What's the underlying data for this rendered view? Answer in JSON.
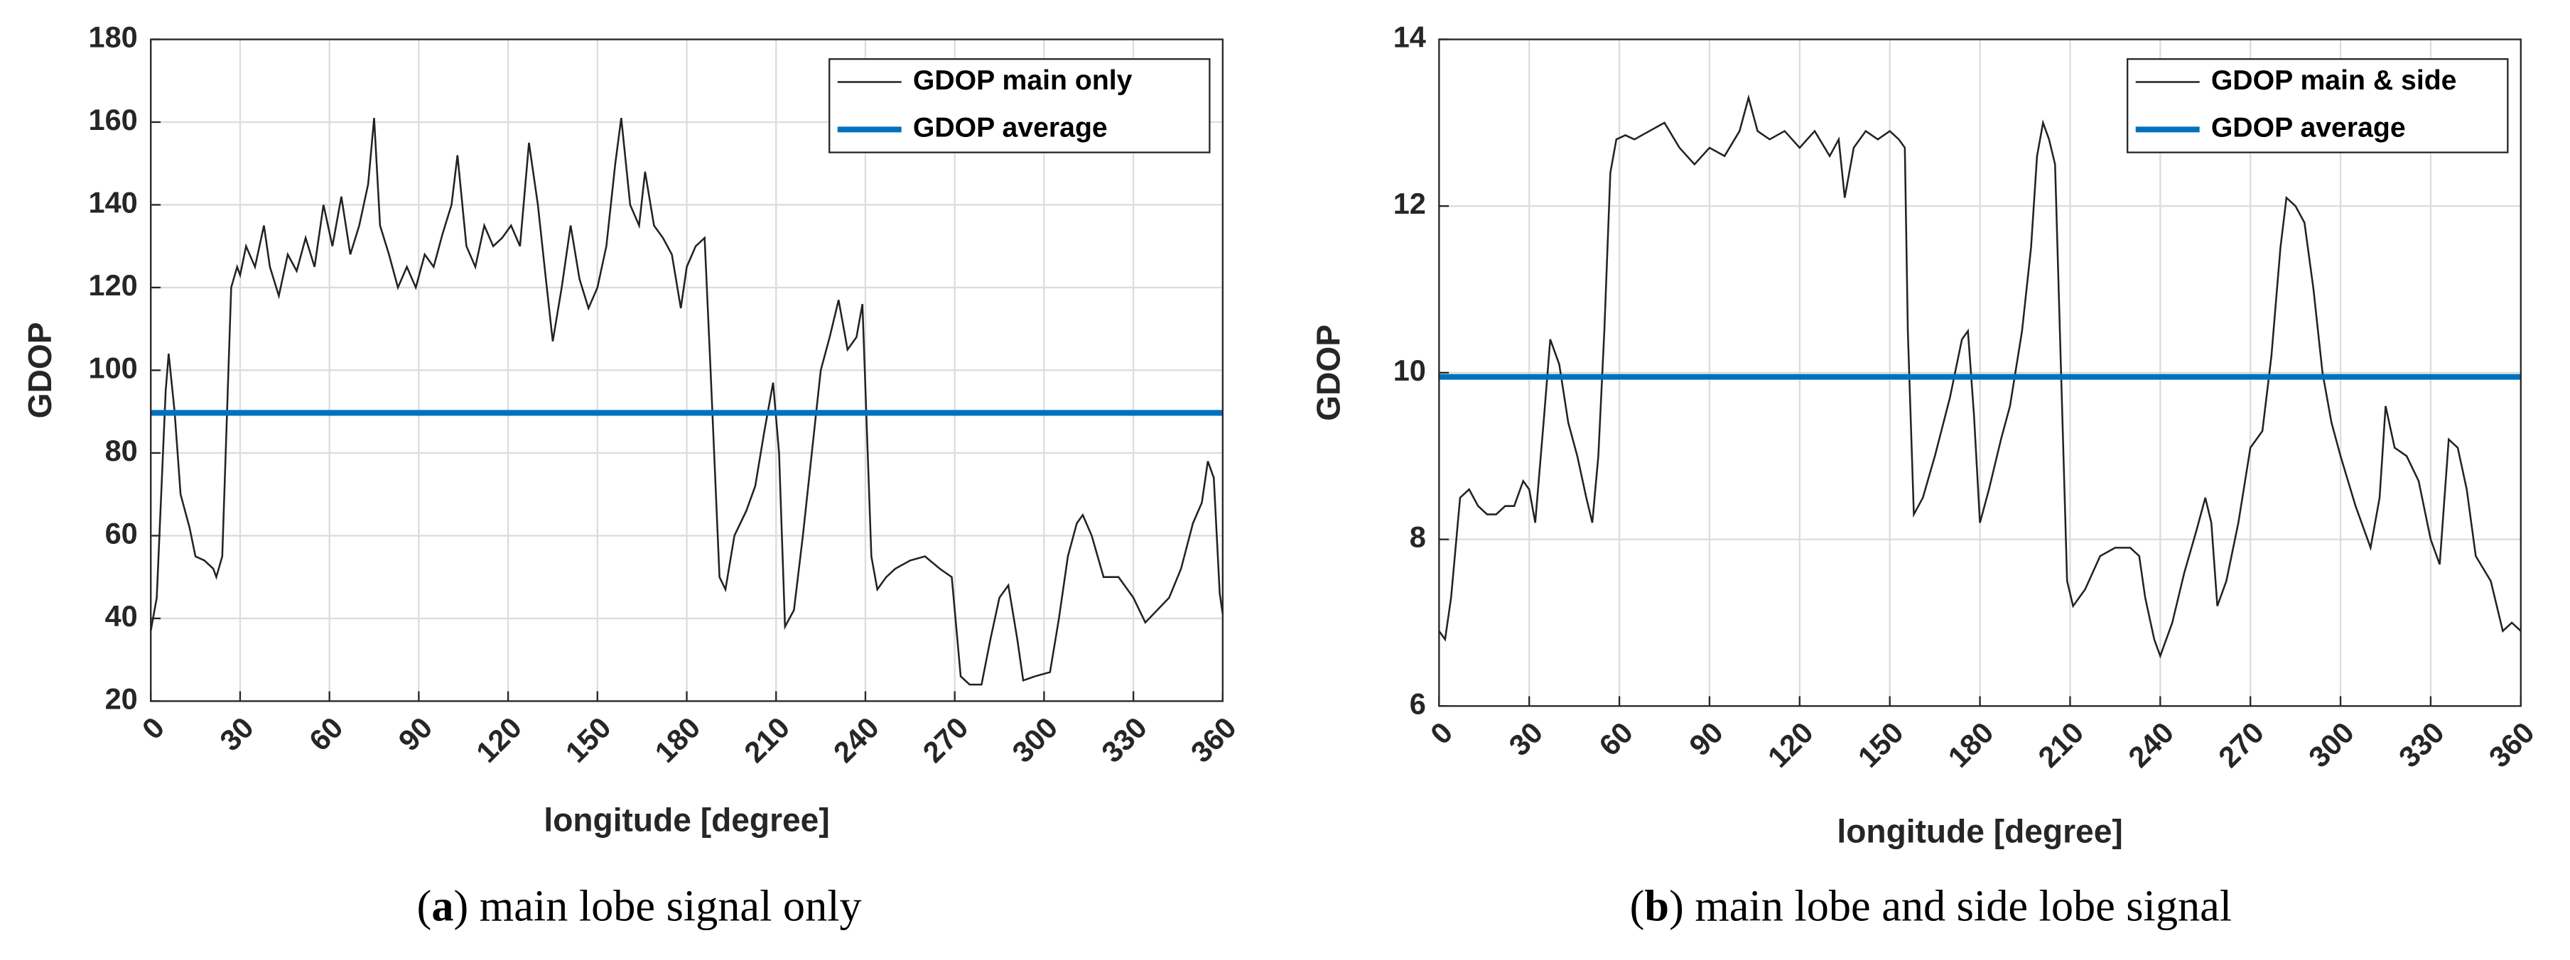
{
  "chart_data": [
    {
      "type": "line",
      "xlabel": "longitude [degree]",
      "ylabel": "GDOP",
      "caption": [
        "(",
        "a",
        ") main lobe signal only"
      ],
      "xlim": [
        0,
        360
      ],
      "xticks": [
        0,
        30,
        60,
        90,
        120,
        150,
        180,
        210,
        240,
        270,
        300,
        330,
        360
      ],
      "ylim": [
        20,
        180
      ],
      "yticks": [
        20,
        40,
        60,
        80,
        100,
        120,
        140,
        160,
        180
      ],
      "grid": true,
      "legend": "northeast",
      "x": [
        0,
        2,
        5,
        6,
        8,
        10,
        13,
        15,
        18,
        21,
        22,
        24,
        27,
        29,
        30,
        32,
        35,
        38,
        40,
        43,
        46,
        49,
        52,
        55,
        58,
        61,
        64,
        67,
        70,
        73,
        75,
        77,
        80,
        83,
        86,
        89,
        92,
        95,
        98,
        101,
        103,
        106,
        109,
        112,
        115,
        118,
        121,
        124,
        127,
        130,
        133,
        135,
        138,
        141,
        144,
        147,
        150,
        153,
        156,
        158,
        161,
        164,
        166,
        169,
        172,
        175,
        178,
        180,
        183,
        186,
        188,
        191,
        193,
        196,
        200,
        203,
        206,
        209,
        211,
        213,
        216,
        219,
        222,
        225,
        228,
        231,
        234,
        237,
        239,
        242,
        244,
        247,
        250,
        255,
        260,
        265,
        269,
        272,
        275,
        279,
        282,
        285,
        288,
        291,
        293,
        297,
        302,
        305,
        308,
        311,
        313,
        316,
        320,
        325,
        330,
        334,
        338,
        342,
        346,
        350,
        353,
        355,
        357,
        359,
        360
      ],
      "series": [
        {
          "name": "GDOP main only",
          "color": "#222222",
          "values": [
            37,
            45,
            95,
            104,
            90,
            70,
            62,
            55,
            54,
            52,
            50,
            55,
            120,
            125,
            123,
            130,
            125,
            135,
            125,
            118,
            128,
            124,
            132,
            125,
            140,
            130,
            142,
            128,
            135,
            145,
            161,
            135,
            128,
            120,
            125,
            120,
            128,
            125,
            133,
            140,
            152,
            130,
            125,
            135,
            130,
            132,
            135,
            130,
            155,
            140,
            120,
            107,
            120,
            135,
            122,
            115,
            120,
            130,
            150,
            161,
            140,
            135,
            148,
            135,
            132,
            128,
            115,
            125,
            130,
            132,
            100,
            50,
            47,
            60,
            66,
            72,
            85,
            97,
            80,
            38,
            42,
            60,
            80,
            100,
            108,
            117,
            105,
            108,
            116,
            55,
            47,
            50,
            52,
            54,
            55,
            52,
            50,
            26,
            24,
            24,
            35,
            45,
            48,
            35,
            25,
            26,
            27,
            40,
            55,
            63,
            65,
            60,
            50,
            50,
            45,
            39,
            42,
            45,
            52,
            63,
            68,
            78,
            74,
            46,
            41
          ]
        },
        {
          "name": "GDOP average",
          "color": "#0072bd",
          "x": [
            0,
            360
          ],
          "values": [
            89.7,
            89.7
          ]
        }
      ]
    },
    {
      "type": "line",
      "xlabel": "longitude [degree]",
      "ylabel": "GDOP",
      "caption": [
        "(",
        "b",
        ") main lobe and side lobe signal"
      ],
      "xlim": [
        0,
        360
      ],
      "xticks": [
        0,
        30,
        60,
        90,
        120,
        150,
        180,
        210,
        240,
        270,
        300,
        330,
        360
      ],
      "ylim": [
        6,
        14
      ],
      "yticks": [
        6,
        8,
        10,
        12,
        14
      ],
      "grid": true,
      "legend": "northeast",
      "x": [
        0,
        2,
        4,
        7,
        10,
        13,
        16,
        19,
        22,
        25,
        28,
        30,
        32,
        35,
        37,
        40,
        43,
        46,
        49,
        51,
        53,
        55,
        57,
        59,
        62,
        65,
        70,
        75,
        80,
        85,
        90,
        95,
        100,
        103,
        106,
        110,
        115,
        120,
        125,
        130,
        133,
        135,
        138,
        142,
        146,
        150,
        153,
        155,
        156,
        158,
        161,
        165,
        170,
        174,
        176,
        178,
        180,
        183,
        187,
        190,
        194,
        197,
        199,
        201,
        203,
        205,
        207,
        209,
        211,
        215,
        220,
        225,
        230,
        233,
        235,
        238,
        240,
        244,
        248,
        252,
        255,
        257,
        259,
        262,
        266,
        270,
        274,
        277,
        280,
        282,
        285,
        288,
        291,
        294,
        297,
        300,
        305,
        310,
        313,
        315,
        318,
        322,
        326,
        330,
        333,
        336,
        339,
        342,
        345,
        350,
        354,
        357,
        360
      ],
      "series": [
        {
          "name": "GDOP main & side",
          "color": "#222222",
          "values": [
            6.9,
            6.8,
            7.3,
            8.5,
            8.6,
            8.4,
            8.3,
            8.3,
            8.4,
            8.4,
            8.7,
            8.6,
            8.2,
            9.5,
            10.4,
            10.1,
            9.4,
            9.0,
            8.5,
            8.2,
            9.0,
            10.5,
            12.4,
            12.8,
            12.85,
            12.8,
            12.9,
            13.0,
            12.7,
            12.5,
            12.7,
            12.6,
            12.9,
            13.3,
            12.9,
            12.8,
            12.9,
            12.7,
            12.9,
            12.6,
            12.8,
            12.1,
            12.7,
            12.9,
            12.8,
            12.9,
            12.8,
            12.7,
            10.5,
            8.3,
            8.5,
            9.0,
            9.7,
            10.4,
            10.5,
            9.5,
            8.2,
            8.6,
            9.2,
            9.6,
            10.5,
            11.5,
            12.6,
            13.0,
            12.8,
            12.5,
            10.0,
            7.5,
            7.2,
            7.4,
            7.8,
            7.9,
            7.9,
            7.8,
            7.3,
            6.8,
            6.6,
            7.0,
            7.6,
            8.1,
            8.5,
            8.2,
            7.2,
            7.5,
            8.2,
            9.1,
            9.3,
            10.2,
            11.5,
            12.1,
            12.0,
            11.8,
            11.0,
            10.0,
            9.4,
            9.0,
            8.4,
            7.9,
            8.5,
            9.6,
            9.1,
            9.0,
            8.7,
            8.0,
            7.7,
            9.2,
            9.1,
            8.6,
            7.8,
            7.5,
            6.9,
            7.0,
            6.9
          ]
        },
        {
          "name": "GDOP average",
          "color": "#0072bd",
          "x": [
            0,
            360
          ],
          "values": [
            9.95,
            9.95
          ]
        }
      ]
    }
  ]
}
